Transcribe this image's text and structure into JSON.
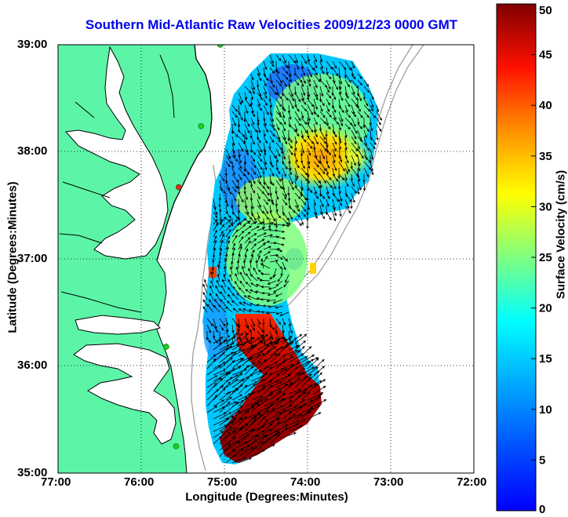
{
  "map": {
    "title": "Southern Mid-Atlantic Raw Velocities 2009/12/23 0000 GMT",
    "x_axis_label": "Longitude (Degrees:Minutes)",
    "y_axis_label": "Latitude (Degrees:Minutes)",
    "x_tick_labels": [
      "77:00",
      "76:00",
      "75:00",
      "74:00",
      "73:00",
      "72:00"
    ],
    "y_tick_labels": [
      "39:00",
      "38:00",
      "37:00",
      "36:00",
      "35:00"
    ],
    "lon_range": [
      -77,
      -72
    ],
    "lat_range": [
      35,
      39
    ],
    "grid": "dotted",
    "colors": {
      "land": "#5cf5a8",
      "water": "#ffffff",
      "coastline": "#000000",
      "bathymetry": "#999999",
      "station_marker": "#22cc22",
      "station_marker_alt": "#ee2222",
      "title": "#0000ee"
    }
  },
  "colorbar": {
    "label": "Surface Velocity (cm/s)",
    "tick_labels": [
      "50",
      "45",
      "40",
      "35",
      "30",
      "25",
      "20",
      "15",
      "10",
      "5",
      "0"
    ],
    "range": [
      0,
      50
    ],
    "colormap": "jet"
  },
  "stations": [
    {
      "lon": -75.05,
      "lat": 39.0,
      "type": "normal"
    },
    {
      "lon": -75.28,
      "lat": 38.24,
      "type": "normal"
    },
    {
      "lon": -75.55,
      "lat": 37.67,
      "type": "active"
    },
    {
      "lon": -75.7,
      "lat": 36.18,
      "type": "normal"
    },
    {
      "lon": -75.58,
      "lat": 35.25,
      "type": "normal"
    }
  ]
}
